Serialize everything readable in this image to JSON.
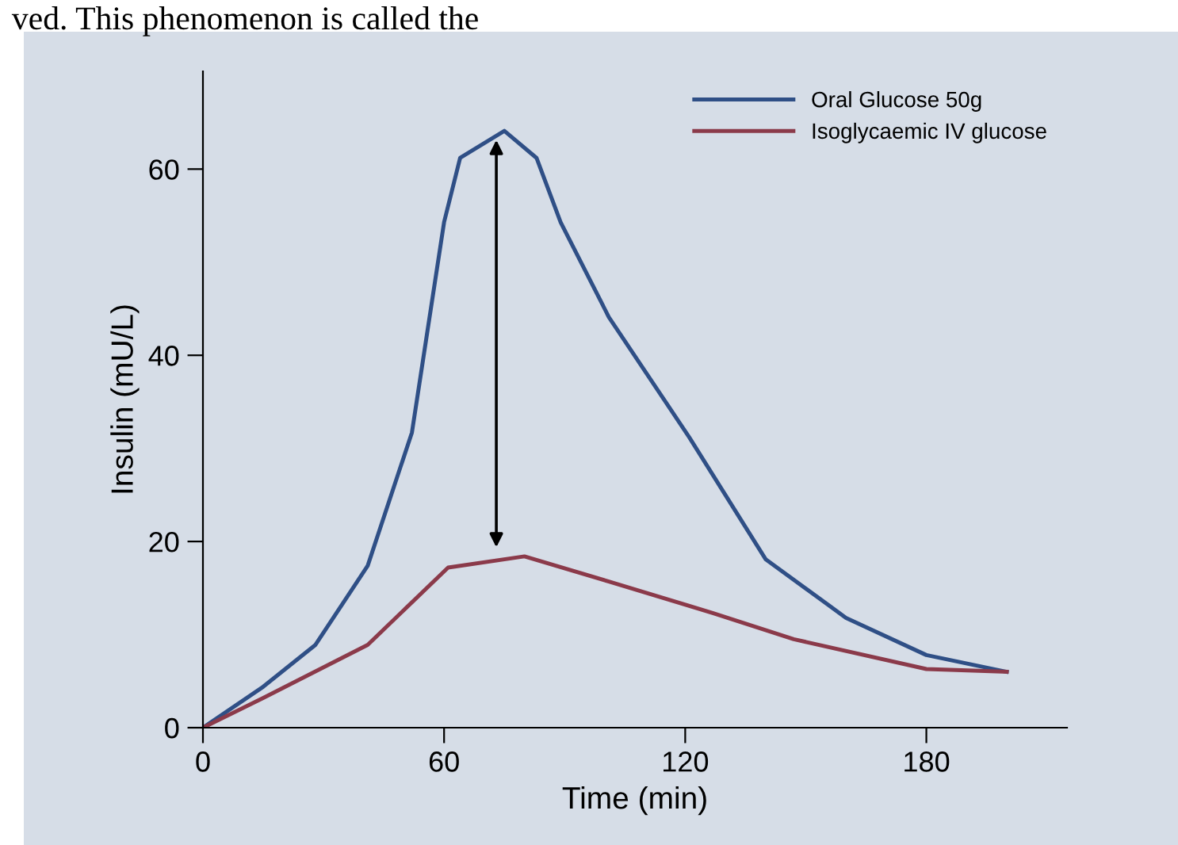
{
  "chart_data": {
    "type": "line",
    "xlabel": "Time (min)",
    "ylabel": "Insulin (mU/L)",
    "xlim": [
      0,
      215
    ],
    "ylim": [
      0,
      70.5
    ],
    "xticks": [
      0,
      60,
      120,
      180
    ],
    "yticks": [
      0,
      20,
      40,
      60
    ],
    "grid": false,
    "legend": "top right",
    "marker": "none",
    "line_style": "solid",
    "annotations": [
      "ved. This phenomenon is called the"
    ],
    "series": [
      {
        "name": "Oral Glucose 50g",
        "color": "#2f4f86",
        "x": [
          0,
          15,
          28,
          41,
          52,
          60,
          64,
          75,
          83,
          89,
          101,
          121,
          140,
          160,
          180,
          200
        ],
        "values": [
          0,
          4.4,
          8.9,
          17.4,
          31.7,
          54.3,
          61.2,
          64.1,
          61.2,
          54.3,
          44.1,
          31.2,
          18.1,
          11.8,
          7.8,
          6.0
        ]
      },
      {
        "name": "Isoglycaemic IV glucose",
        "color": "#8b3a4a",
        "x": [
          0,
          15,
          41,
          61,
          80,
          101,
          127,
          147,
          180,
          200
        ],
        "values": [
          0,
          3.2,
          8.9,
          17.2,
          18.4,
          15.7,
          12.3,
          9.5,
          6.3,
          6.0
        ]
      }
    ]
  }
}
